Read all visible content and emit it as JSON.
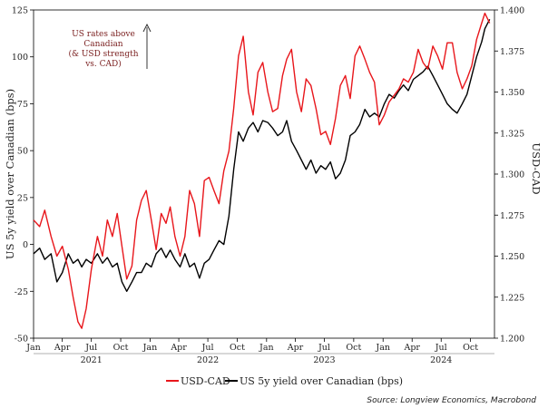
{
  "chart_data": {
    "type": "line",
    "y_left_label": "US 5y yield over Canadian (bps)",
    "y_right_label": "USD-CAD",
    "ylim_left": [
      -50,
      125
    ],
    "ylim_right": [
      1.2,
      1.4
    ],
    "xlim": [
      "2021-01-01",
      "2024-12-15"
    ],
    "left_ticks": [
      "125",
      "100",
      "75",
      "50",
      "25",
      "0",
      "-25",
      "-50"
    ],
    "right_ticks": [
      "1.400",
      "1.375",
      "1.350",
      "1.325",
      "1.300",
      "1.275",
      "1.250",
      "1.225",
      "1.200"
    ],
    "month_ticks": [
      {
        "label": "Jan",
        "date": "2021-01-01"
      },
      {
        "label": "Apr",
        "date": "2021-04-01"
      },
      {
        "label": "Jul",
        "date": "2021-07-01"
      },
      {
        "label": "Oct",
        "date": "2021-10-01"
      },
      {
        "label": "Jan",
        "date": "2022-01-01"
      },
      {
        "label": "Apr",
        "date": "2022-04-01"
      },
      {
        "label": "Jul",
        "date": "2022-07-01"
      },
      {
        "label": "Oct",
        "date": "2022-10-01"
      },
      {
        "label": "Jan",
        "date": "2023-01-01"
      },
      {
        "label": "Apr",
        "date": "2023-04-01"
      },
      {
        "label": "Jul",
        "date": "2023-07-01"
      },
      {
        "label": "Oct",
        "date": "2023-10-01"
      },
      {
        "label": "Jan",
        "date": "2024-01-01"
      },
      {
        "label": "Apr",
        "date": "2024-04-01"
      },
      {
        "label": "Jul",
        "date": "2024-07-01"
      },
      {
        "label": "Oct",
        "date": "2024-10-01"
      }
    ],
    "year_labels": [
      {
        "label": "2021",
        "date": "2021-07-01"
      },
      {
        "label": "2022",
        "date": "2022-07-01"
      },
      {
        "label": "2023",
        "date": "2023-07-01"
      },
      {
        "label": "2024",
        "date": "2024-07-01"
      }
    ],
    "annotation": [
      "US rates above",
      "Canadian",
      "(& USD strength",
      "vs. CAD)"
    ],
    "series": [
      {
        "name": "USD-CAD",
        "axis": "right",
        "color": "#e8161b",
        "points": [
          [
            "2021-01-01",
            1.272
          ],
          [
            "2021-01-20",
            1.268
          ],
          [
            "2021-02-05",
            1.278
          ],
          [
            "2021-02-25",
            1.262
          ],
          [
            "2021-03-15",
            1.25
          ],
          [
            "2021-04-01",
            1.256
          ],
          [
            "2021-04-20",
            1.242
          ],
          [
            "2021-05-05",
            1.225
          ],
          [
            "2021-05-20",
            1.21
          ],
          [
            "2021-06-01",
            1.206
          ],
          [
            "2021-06-15",
            1.218
          ],
          [
            "2021-07-01",
            1.242
          ],
          [
            "2021-07-20",
            1.262
          ],
          [
            "2021-08-05",
            1.25
          ],
          [
            "2021-08-20",
            1.272
          ],
          [
            "2021-09-05",
            1.262
          ],
          [
            "2021-09-20",
            1.276
          ],
          [
            "2021-10-05",
            1.256
          ],
          [
            "2021-10-20",
            1.236
          ],
          [
            "2021-11-05",
            1.244
          ],
          [
            "2021-11-20",
            1.272
          ],
          [
            "2021-12-05",
            1.284
          ],
          [
            "2021-12-20",
            1.29
          ],
          [
            "2022-01-05",
            1.272
          ],
          [
            "2022-01-20",
            1.254
          ],
          [
            "2022-02-05",
            1.276
          ],
          [
            "2022-02-20",
            1.27
          ],
          [
            "2022-03-05",
            1.28
          ],
          [
            "2022-03-20",
            1.262
          ],
          [
            "2022-04-05",
            1.25
          ],
          [
            "2022-04-20",
            1.262
          ],
          [
            "2022-05-05",
            1.29
          ],
          [
            "2022-05-20",
            1.282
          ],
          [
            "2022-06-05",
            1.262
          ],
          [
            "2022-06-20",
            1.296
          ],
          [
            "2022-07-05",
            1.298
          ],
          [
            "2022-07-20",
            1.29
          ],
          [
            "2022-08-05",
            1.282
          ],
          [
            "2022-08-20",
            1.302
          ],
          [
            "2022-09-05",
            1.314
          ],
          [
            "2022-09-20",
            1.34
          ],
          [
            "2022-10-05",
            1.372
          ],
          [
            "2022-10-20",
            1.384
          ],
          [
            "2022-11-05",
            1.35
          ],
          [
            "2022-11-20",
            1.336
          ],
          [
            "2022-12-05",
            1.362
          ],
          [
            "2022-12-20",
            1.368
          ],
          [
            "2023-01-05",
            1.35
          ],
          [
            "2023-01-20",
            1.338
          ],
          [
            "2023-02-05",
            1.34
          ],
          [
            "2023-02-20",
            1.36
          ],
          [
            "2023-03-05",
            1.37
          ],
          [
            "2023-03-20",
            1.376
          ],
          [
            "2023-04-05",
            1.35
          ],
          [
            "2023-04-20",
            1.338
          ],
          [
            "2023-05-05",
            1.358
          ],
          [
            "2023-05-20",
            1.354
          ],
          [
            "2023-06-05",
            1.34
          ],
          [
            "2023-06-20",
            1.324
          ],
          [
            "2023-07-05",
            1.326
          ],
          [
            "2023-07-20",
            1.318
          ],
          [
            "2023-08-05",
            1.334
          ],
          [
            "2023-08-20",
            1.354
          ],
          [
            "2023-09-05",
            1.36
          ],
          [
            "2023-09-20",
            1.346
          ],
          [
            "2023-10-05",
            1.372
          ],
          [
            "2023-10-20",
            1.378
          ],
          [
            "2023-11-05",
            1.37
          ],
          [
            "2023-11-20",
            1.362
          ],
          [
            "2023-12-05",
            1.356
          ],
          [
            "2023-12-20",
            1.33
          ],
          [
            "2024-01-05",
            1.336
          ],
          [
            "2024-01-20",
            1.344
          ],
          [
            "2024-02-05",
            1.348
          ],
          [
            "2024-02-20",
            1.352
          ],
          [
            "2024-03-05",
            1.358
          ],
          [
            "2024-03-20",
            1.356
          ],
          [
            "2024-04-05",
            1.362
          ],
          [
            "2024-04-20",
            1.376
          ],
          [
            "2024-05-05",
            1.368
          ],
          [
            "2024-05-20",
            1.364
          ],
          [
            "2024-06-05",
            1.378
          ],
          [
            "2024-06-20",
            1.372
          ],
          [
            "2024-07-05",
            1.364
          ],
          [
            "2024-07-20",
            1.38
          ],
          [
            "2024-08-05",
            1.38
          ],
          [
            "2024-08-20",
            1.362
          ],
          [
            "2024-09-05",
            1.352
          ],
          [
            "2024-09-20",
            1.358
          ],
          [
            "2024-10-05",
            1.366
          ],
          [
            "2024-10-20",
            1.382
          ],
          [
            "2024-11-05",
            1.392
          ],
          [
            "2024-11-15",
            1.398
          ],
          [
            "2024-11-30",
            1.392
          ]
        ]
      },
      {
        "name": "US 5y yield over Canadian (bps)",
        "axis": "left",
        "color": "#000000",
        "points": [
          [
            "2021-01-01",
            -5
          ],
          [
            "2021-01-20",
            -2
          ],
          [
            "2021-02-05",
            -8
          ],
          [
            "2021-02-25",
            -5
          ],
          [
            "2021-03-15",
            -20
          ],
          [
            "2021-04-01",
            -15
          ],
          [
            "2021-04-20",
            -5
          ],
          [
            "2021-05-05",
            -10
          ],
          [
            "2021-05-20",
            -8
          ],
          [
            "2021-06-01",
            -12
          ],
          [
            "2021-06-15",
            -8
          ],
          [
            "2021-07-01",
            -10
          ],
          [
            "2021-07-20",
            -5
          ],
          [
            "2021-08-05",
            -10
          ],
          [
            "2021-08-20",
            -7
          ],
          [
            "2021-09-05",
            -12
          ],
          [
            "2021-09-20",
            -10
          ],
          [
            "2021-10-05",
            -20
          ],
          [
            "2021-10-20",
            -25
          ],
          [
            "2021-11-05",
            -20
          ],
          [
            "2021-11-20",
            -15
          ],
          [
            "2021-12-05",
            -15
          ],
          [
            "2021-12-20",
            -10
          ],
          [
            "2022-01-05",
            -12
          ],
          [
            "2022-01-20",
            -5
          ],
          [
            "2022-02-05",
            -2
          ],
          [
            "2022-02-20",
            -7
          ],
          [
            "2022-03-05",
            -3
          ],
          [
            "2022-03-20",
            -8
          ],
          [
            "2022-04-05",
            -12
          ],
          [
            "2022-04-20",
            -5
          ],
          [
            "2022-05-05",
            -12
          ],
          [
            "2022-05-20",
            -10
          ],
          [
            "2022-06-05",
            -18
          ],
          [
            "2022-06-20",
            -10
          ],
          [
            "2022-07-05",
            -8
          ],
          [
            "2022-07-20",
            -3
          ],
          [
            "2022-08-05",
            2
          ],
          [
            "2022-08-20",
            0
          ],
          [
            "2022-09-05",
            15
          ],
          [
            "2022-09-20",
            40
          ],
          [
            "2022-10-05",
            60
          ],
          [
            "2022-10-20",
            55
          ],
          [
            "2022-11-05",
            62
          ],
          [
            "2022-11-20",
            65
          ],
          [
            "2022-12-05",
            60
          ],
          [
            "2022-12-20",
            66
          ],
          [
            "2023-01-05",
            65
          ],
          [
            "2023-01-20",
            62
          ],
          [
            "2023-02-05",
            58
          ],
          [
            "2023-02-20",
            60
          ],
          [
            "2023-03-05",
            66
          ],
          [
            "2023-03-20",
            55
          ],
          [
            "2023-04-05",
            50
          ],
          [
            "2023-04-20",
            45
          ],
          [
            "2023-05-05",
            40
          ],
          [
            "2023-05-20",
            45
          ],
          [
            "2023-06-05",
            38
          ],
          [
            "2023-06-20",
            42
          ],
          [
            "2023-07-05",
            40
          ],
          [
            "2023-07-20",
            44
          ],
          [
            "2023-08-05",
            35
          ],
          [
            "2023-08-20",
            38
          ],
          [
            "2023-09-05",
            45
          ],
          [
            "2023-09-20",
            58
          ],
          [
            "2023-10-05",
            60
          ],
          [
            "2023-10-20",
            64
          ],
          [
            "2023-11-05",
            72
          ],
          [
            "2023-11-20",
            68
          ],
          [
            "2023-12-05",
            70
          ],
          [
            "2023-12-20",
            68
          ],
          [
            "2024-01-05",
            75
          ],
          [
            "2024-01-20",
            80
          ],
          [
            "2024-02-05",
            78
          ],
          [
            "2024-02-20",
            82
          ],
          [
            "2024-03-05",
            85
          ],
          [
            "2024-03-20",
            82
          ],
          [
            "2024-04-05",
            88
          ],
          [
            "2024-04-20",
            90
          ],
          [
            "2024-05-05",
            92
          ],
          [
            "2024-05-20",
            95
          ],
          [
            "2024-06-05",
            90
          ],
          [
            "2024-06-20",
            85
          ],
          [
            "2024-07-05",
            80
          ],
          [
            "2024-07-20",
            75
          ],
          [
            "2024-08-05",
            72
          ],
          [
            "2024-08-20",
            70
          ],
          [
            "2024-09-05",
            75
          ],
          [
            "2024-09-20",
            80
          ],
          [
            "2024-10-05",
            90
          ],
          [
            "2024-10-20",
            100
          ],
          [
            "2024-11-05",
            108
          ],
          [
            "2024-11-15",
            115
          ],
          [
            "2024-11-30",
            120
          ]
        ]
      }
    ]
  },
  "legend": {
    "usdcad_label": "USD-CAD",
    "spread_label": "US 5y yield over Canadian (bps)"
  },
  "source": "Source: Longview Economics, Macrobond"
}
